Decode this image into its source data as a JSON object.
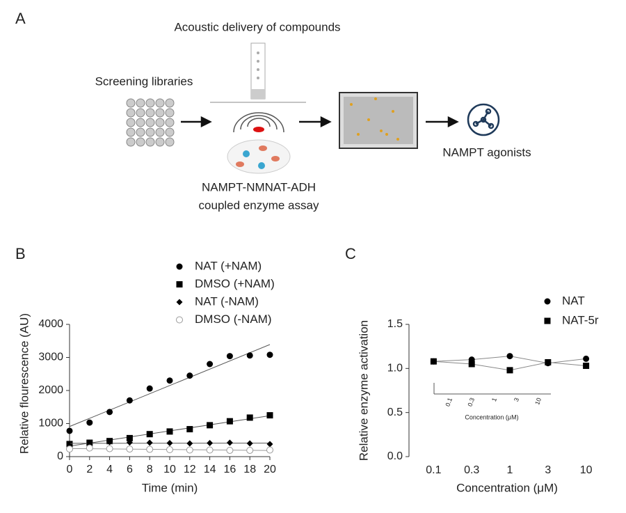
{
  "panel_labels": [
    "A",
    "B",
    "C"
  ],
  "schematic": {
    "delivery": "Acoustic delivery of compounds",
    "libraries": "Screening libraries",
    "assay_line1": "NAMPT-NMNAT-ADH",
    "assay_line2": "coupled enzyme assay",
    "result": "NAMPT agonists"
  },
  "chart_data": [
    {
      "type": "scatter",
      "xlabel": "Time (min)",
      "ylabel": "Relative flourescence (AU)",
      "fit_line": true,
      "x": [
        0,
        2,
        4,
        6,
        8,
        10,
        12,
        14,
        16,
        18,
        20
      ],
      "xlim": [
        0,
        20
      ],
      "xticks": [
        0,
        2,
        4,
        6,
        8,
        10,
        12,
        14,
        16,
        18,
        20
      ],
      "ylim": [
        0,
        4000
      ],
      "yticks": [
        0,
        1000,
        2000,
        3000,
        4000
      ],
      "series": [
        {
          "name": "NAT (+NAM)",
          "color": "#000000",
          "marker": "circle",
          "values": [
            780,
            1030,
            1350,
            1700,
            2060,
            2300,
            2450,
            2800,
            3040,
            3060,
            3080
          ]
        },
        {
          "name": "DMSO (+NAM)",
          "color": "#000000",
          "marker": "square",
          "values": [
            380,
            420,
            470,
            560,
            680,
            760,
            830,
            950,
            1070,
            1180,
            1250
          ]
        },
        {
          "name": "NAT (-NAM)",
          "color": "#000000",
          "marker": "diamond",
          "values": [
            330,
            420,
            440,
            430,
            420,
            410,
            400,
            410,
            420,
            400,
            380
          ]
        },
        {
          "name": "DMSO (-NAM)",
          "color": "#999999",
          "marker": "circle-open",
          "values": [
            230,
            260,
            240,
            230,
            220,
            210,
            200,
            200,
            190,
            190,
            200
          ]
        }
      ]
    },
    {
      "type": "line",
      "xlabel": "Concentration (μM)",
      "ylabel": "Relative enzyme activation",
      "categories": [
        "0.1",
        "0.3",
        "1",
        "3",
        "10"
      ],
      "ylim": [
        0,
        1.5
      ],
      "yticks": [
        {
          "value": 0,
          "label": "0.0"
        },
        0.5,
        {
          "value": 1,
          "label": "1.0"
        },
        1.5
      ],
      "series": [
        {
          "name": "NAT",
          "color": "#000000",
          "marker": "circle",
          "values": [
            1.08,
            1.1,
            1.14,
            1.06,
            1.11
          ]
        },
        {
          "name": "NAT-5r",
          "color": "#000000",
          "marker": "square",
          "values": [
            1.08,
            1.05,
            0.98,
            1.07,
            1.03
          ]
        }
      ],
      "inset": {
        "categories": [
          "0.1",
          "0.3",
          "1",
          "3",
          "10"
        ],
        "xlabel": "Concentration (μM)"
      }
    }
  ]
}
